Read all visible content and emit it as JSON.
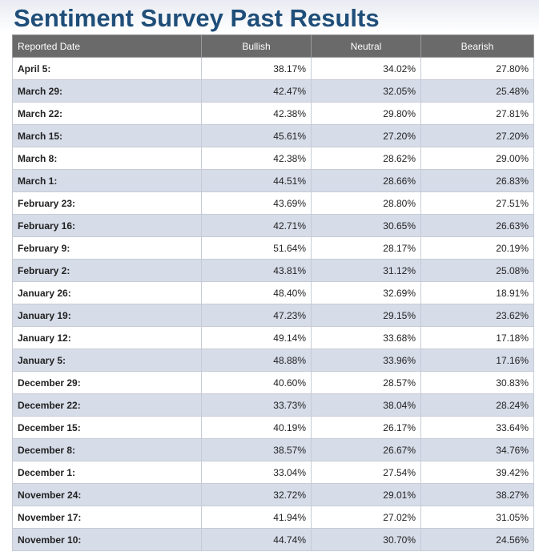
{
  "page": {
    "title": "Sentiment Survey Past Results"
  },
  "table": {
    "headers": [
      "Reported Date",
      "Bullish",
      "Neutral",
      "Bearish"
    ],
    "rows": [
      {
        "date": "April 5:",
        "bullish": "38.17%",
        "neutral": "34.02%",
        "bearish": "27.80%"
      },
      {
        "date": "March 29:",
        "bullish": "42.47%",
        "neutral": "32.05%",
        "bearish": "25.48%"
      },
      {
        "date": "March 22:",
        "bullish": "42.38%",
        "neutral": "29.80%",
        "bearish": "27.81%"
      },
      {
        "date": "March 15:",
        "bullish": "45.61%",
        "neutral": "27.20%",
        "bearish": "27.20%"
      },
      {
        "date": "March 8:",
        "bullish": "42.38%",
        "neutral": "28.62%",
        "bearish": "29.00%"
      },
      {
        "date": "March 1:",
        "bullish": "44.51%",
        "neutral": "28.66%",
        "bearish": "26.83%"
      },
      {
        "date": "February 23:",
        "bullish": "43.69%",
        "neutral": "28.80%",
        "bearish": "27.51%"
      },
      {
        "date": "February 16:",
        "bullish": "42.71%",
        "neutral": "30.65%",
        "bearish": "26.63%"
      },
      {
        "date": "February 9:",
        "bullish": "51.64%",
        "neutral": "28.17%",
        "bearish": "20.19%"
      },
      {
        "date": "February 2:",
        "bullish": "43.81%",
        "neutral": "31.12%",
        "bearish": "25.08%"
      },
      {
        "date": "January 26:",
        "bullish": "48.40%",
        "neutral": "32.69%",
        "bearish": "18.91%"
      },
      {
        "date": "January 19:",
        "bullish": "47.23%",
        "neutral": "29.15%",
        "bearish": "23.62%"
      },
      {
        "date": "January 12:",
        "bullish": "49.14%",
        "neutral": "33.68%",
        "bearish": "17.18%"
      },
      {
        "date": "January 5:",
        "bullish": "48.88%",
        "neutral": "33.96%",
        "bearish": "17.16%"
      },
      {
        "date": "December 29:",
        "bullish": "40.60%",
        "neutral": "28.57%",
        "bearish": "30.83%"
      },
      {
        "date": "December 22:",
        "bullish": "33.73%",
        "neutral": "38.04%",
        "bearish": "28.24%"
      },
      {
        "date": "December 15:",
        "bullish": "40.19%",
        "neutral": "26.17%",
        "bearish": "33.64%"
      },
      {
        "date": "December 8:",
        "bullish": "38.57%",
        "neutral": "26.67%",
        "bearish": "34.76%"
      },
      {
        "date": "December 1:",
        "bullish": "33.04%",
        "neutral": "27.54%",
        "bearish": "39.42%"
      },
      {
        "date": "November 24:",
        "bullish": "32.72%",
        "neutral": "29.01%",
        "bearish": "38.27%"
      },
      {
        "date": "November 17:",
        "bullish": "41.94%",
        "neutral": "27.02%",
        "bearish": "31.05%"
      },
      {
        "date": "November 10:",
        "bullish": "44.74%",
        "neutral": "30.70%",
        "bearish": "24.56%"
      }
    ]
  },
  "colors": {
    "title": "#1f4e79",
    "header_bg": "#6a6a6a",
    "row_alt_bg": "#d6dce8"
  }
}
